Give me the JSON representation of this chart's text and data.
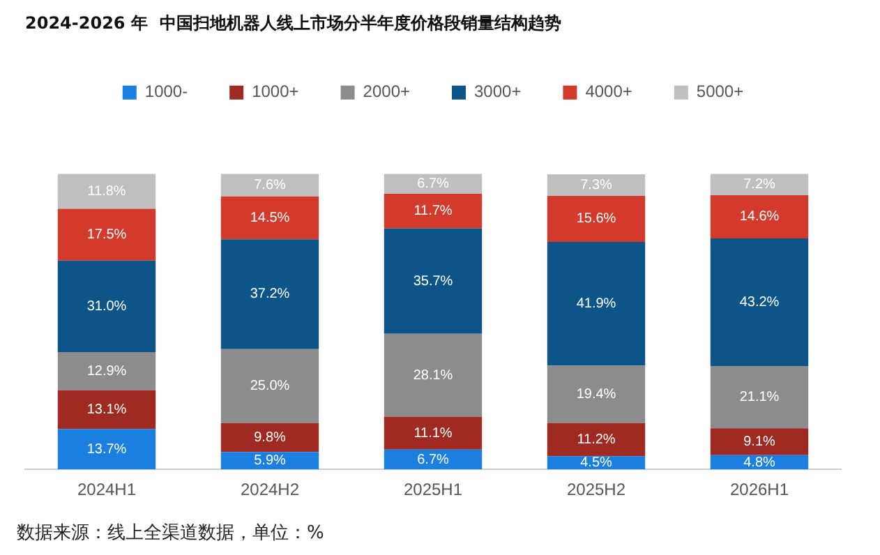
{
  "chart_data": {
    "type": "bar",
    "title": "2024-2026 年  中国扫地机器人线上市场分半年度价格段销量结构趋势",
    "categories": [
      "2024H1",
      "2024H2",
      "2025H1",
      "2025H2",
      "2026H1"
    ],
    "stacked": true,
    "tick_labels": "x",
    "legend": "top",
    "grid": false,
    "series": [
      {
        "name": "1000-",
        "color": "#1a7fe0",
        "values": [
          13.7,
          5.9,
          6.7,
          4.5,
          4.8
        ],
        "value_labels": [
          "13.7%",
          "5.9%",
          "6.7%",
          "4.5%",
          "4.8%"
        ]
      },
      {
        "name": "1000+",
        "color": "#9e2a22",
        "values": [
          13.1,
          9.8,
          11.1,
          11.2,
          9.1
        ],
        "value_labels": [
          "13.1%",
          "9.8%",
          "11.1%",
          "11.2%",
          "9.1%"
        ]
      },
      {
        "name": "2000+",
        "color": "#8c8c8c",
        "values": [
          12.9,
          25.0,
          28.1,
          19.4,
          21.1
        ],
        "value_labels": [
          "12.9%",
          "25.0%",
          "28.1%",
          "19.4%",
          "21.1%"
        ]
      },
      {
        "name": "3000+",
        "color": "#0d5488",
        "values": [
          31.0,
          37.2,
          35.7,
          41.9,
          43.2
        ],
        "value_labels": [
          "31.0%",
          "37.2%",
          "35.7%",
          "41.9%",
          "43.2%"
        ]
      },
      {
        "name": "4000+",
        "color": "#d33a2c",
        "values": [
          17.5,
          14.5,
          11.7,
          15.6,
          14.6
        ],
        "value_labels": [
          "17.5%",
          "14.5%",
          "11.7%",
          "15.6%",
          "14.6%"
        ]
      },
      {
        "name": "5000+",
        "color": "#bfbfbf",
        "values": [
          11.8,
          7.6,
          6.7,
          7.3,
          7.2
        ],
        "value_labels": [
          "11.8%",
          "7.6%",
          "6.7%",
          "7.3%",
          "7.2%"
        ]
      }
    ],
    "annotations": [
      "数据来源：线上全渠道数据，单位：%"
    ]
  }
}
